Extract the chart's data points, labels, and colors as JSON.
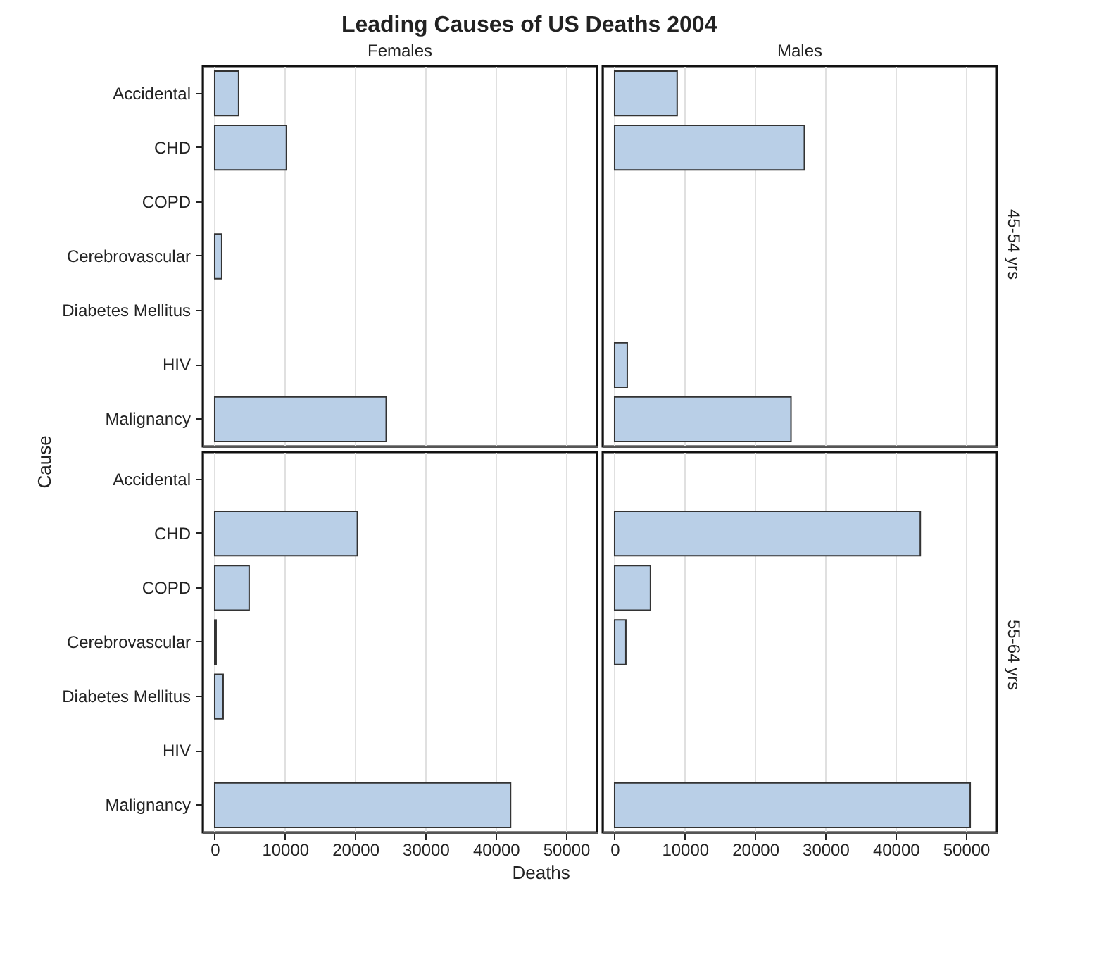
{
  "chart_data": [
    {
      "type": "bar",
      "orientation": "horizontal",
      "title": "Leading Causes of US Deaths 2004",
      "subtitle": "Females",
      "ylabel": "Cause",
      "categories": [
        "Accidental",
        "CHD",
        "COPD",
        "Cerebrovascular",
        "Diabetes Mellitus",
        "HIV",
        "Malignancy"
      ],
      "values": [
        3400,
        10200,
        null,
        1000,
        null,
        null,
        24400
      ],
      "color": "#b9cfe7",
      "xlim": [
        -1700,
        54400
      ],
      "xticks": [
        0,
        10000,
        20000,
        30000,
        40000,
        50000
      ],
      "grid": "x",
      "tick_labels": "y"
    },
    {
      "type": "bar",
      "orientation": "horizontal",
      "subtitle": "Males",
      "y2label": "45-54 yrs",
      "categories": [
        "Accidental",
        "CHD",
        "COPD",
        "Cerebrovascular",
        "Diabetes Mellitus",
        "HIV",
        "Malignancy"
      ],
      "values": [
        8900,
        27000,
        null,
        null,
        null,
        1800,
        25100
      ],
      "color": "#b9cfe7",
      "xlim": [
        -1700,
        54400
      ],
      "xticks": [
        0,
        10000,
        20000,
        30000,
        40000,
        50000
      ],
      "grid": "x",
      "tick_labels": false
    },
    {
      "type": "bar",
      "orientation": "horizontal",
      "xlabel": "Deaths",
      "categories": [
        "Accidental",
        "CHD",
        "COPD",
        "Cerebrovascular",
        "Diabetes Mellitus",
        "HIV",
        "Malignancy"
      ],
      "values": [
        null,
        20300,
        4900,
        200,
        1200,
        null,
        42100
      ],
      "color": "#b9cfe7",
      "xlim": [
        -1700,
        54400
      ],
      "xticks": [
        0,
        10000,
        20000,
        30000,
        40000,
        50000
      ],
      "grid": "x"
    },
    {
      "type": "bar",
      "orientation": "horizontal",
      "y2label": "55-64 yrs",
      "categories": [
        "Accidental",
        "CHD",
        "COPD",
        "Cerebrovascular",
        "Diabetes Mellitus",
        "HIV",
        "Malignancy"
      ],
      "values": [
        null,
        43500,
        5100,
        1600,
        null,
        null,
        50600
      ],
      "color": "#b9cfe7",
      "xlim": [
        -1700,
        54400
      ],
      "xticks": [
        0,
        10000,
        20000,
        30000,
        40000,
        50000
      ],
      "grid": "x",
      "tick_labels": "x"
    }
  ]
}
